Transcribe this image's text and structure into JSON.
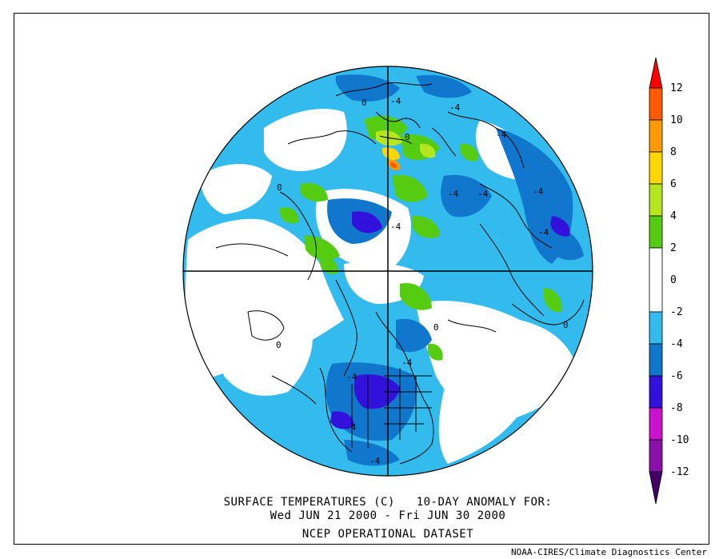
{
  "caption": {
    "line1": "SURFACE TEMPERATURES (C)   10-DAY ANOMALY FOR:",
    "line2": "Wed JUN 21 2000 - Fri JUN 30 2000",
    "line3": "NCEP OPERATIONAL DATASET"
  },
  "credit": "NOAA-CIRES/Climate Diagnostics Center",
  "colorbar": {
    "labels": [
      "12",
      "10",
      "8",
      "6",
      "4",
      "2",
      "0",
      "-2",
      "-4",
      "-6",
      "-8",
      "-10",
      "-12"
    ],
    "colors": {
      "above_12": "#ff0000",
      "10_12": "#ff5a00",
      "8_10": "#ff9900",
      "6_8": "#ffd700",
      "4_6": "#b5e61d",
      "2_4": "#55cc11",
      "neg2_2": "#ffffff",
      "neg4_neg2": "#33bbee",
      "neg6_neg4": "#1177cc",
      "neg8_neg6": "#3311dd",
      "neg10_neg8": "#cc11cc",
      "neg12_neg10": "#8811aa",
      "below_neg12": "#440066"
    }
  },
  "contour_labels": [
    "-4",
    "-4",
    "-4",
    "-4",
    "-4",
    "-4",
    "-4",
    "-4",
    "-4",
    "-4",
    "-4",
    "-4",
    "0",
    "0",
    "0",
    "0",
    "0",
    "0"
  ]
}
